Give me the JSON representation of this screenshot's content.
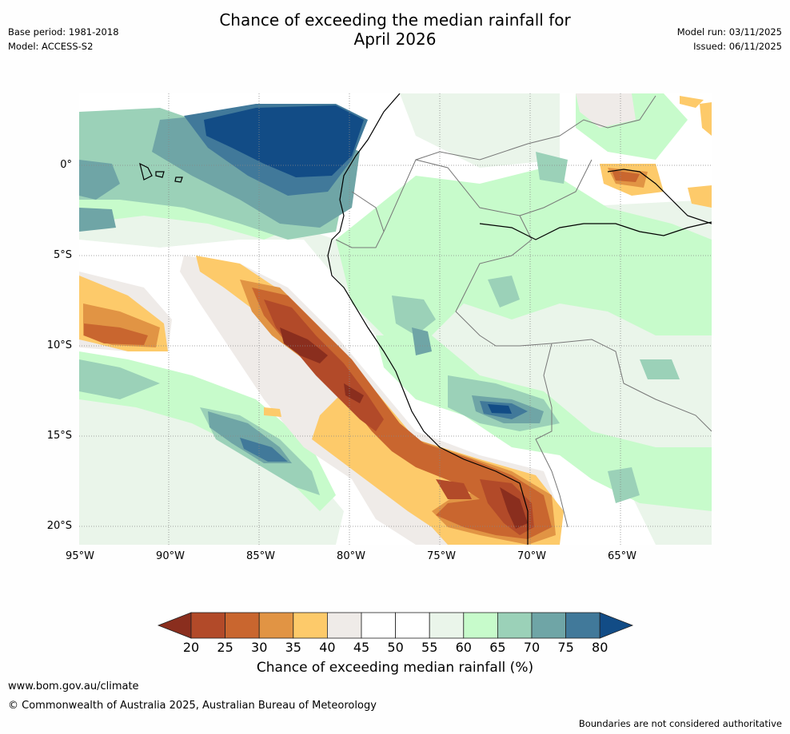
{
  "header": {
    "base_period": "Base period: 1981-2018",
    "model": "Model: ACCESS-S2",
    "title_line1": "Chance of exceeding the median rainfall for",
    "title_line2": "April 2026",
    "model_run": "Model run: 03/11/2025",
    "issued": "Issued: 06/11/2025"
  },
  "axes": {
    "lat_labels": [
      "0°",
      "5°S",
      "10°S",
      "15°S",
      "20°S"
    ],
    "lon_labels": [
      "95°W",
      "90°W",
      "85°W",
      "80°W",
      "75°W",
      "70°W",
      "65°W"
    ]
  },
  "legend": {
    "ticks": [
      "20",
      "25",
      "30",
      "35",
      "40",
      "45",
      "50",
      "55",
      "60",
      "65",
      "70",
      "75",
      "80"
    ],
    "label": "Chance of exceeding median rainfall (%)",
    "colors": {
      "below20": "#8a2e1e",
      "c20_25": "#b24a29",
      "c25_30": "#c9662f",
      "c30_35": "#e19444",
      "c35_40": "#fdca6a",
      "c40_45": "#efebe8",
      "c45_50": "#ffffff",
      "c50_55": "#ffffff",
      "c55_60": "#eaf5ea",
      "c60_65": "#c7fbcb",
      "c65_70": "#9bd1b8",
      "c70_75": "#6fa5a6",
      "c75_80": "#41799a",
      "above80": "#124c86"
    }
  },
  "footer": {
    "website": "www.bom.gov.au/climate",
    "copyright": "© Commonwealth of Australia 2025, Australian Bureau of Meteorology",
    "disclaimer": "Boundaries are not considered authoritative"
  }
}
